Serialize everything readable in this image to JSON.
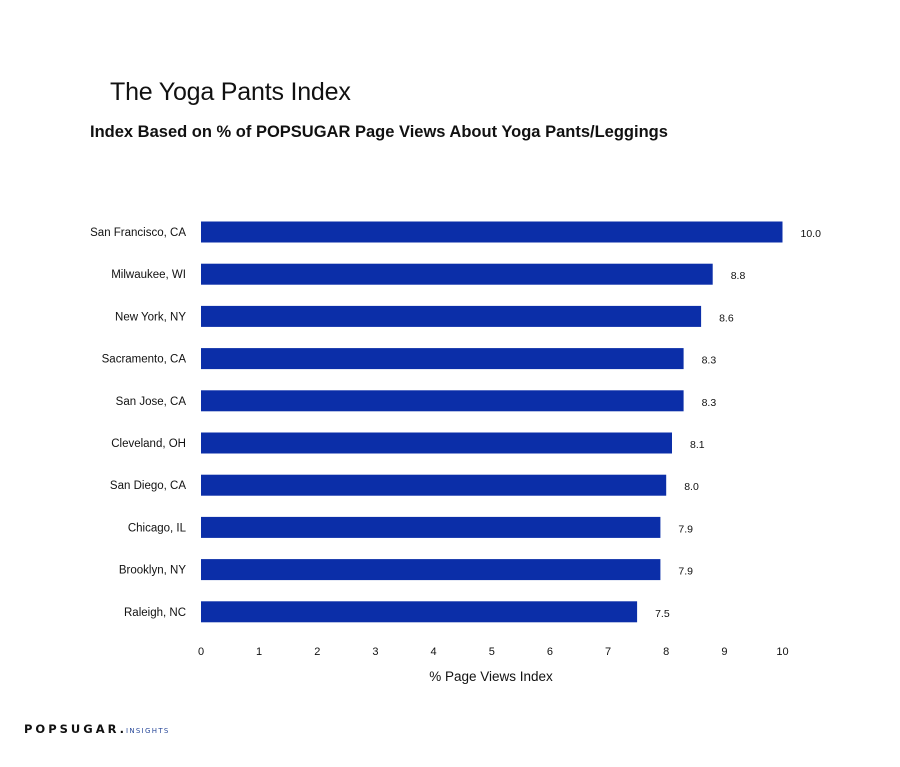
{
  "colors": {
    "bar": "#0b2ea8",
    "text": "#111111",
    "brand_accent": "#2a4a9a"
  },
  "brand": {
    "name": "POPSUGAR.",
    "suffix": "INSIGHTS"
  },
  "chart_data": {
    "type": "bar",
    "orientation": "horizontal",
    "title": "The Yoga Pants Index",
    "subtitle": "Index Based on % of POPSUGAR Page Views About Yoga Pants/Leggings",
    "xlabel": "% Page Views Index",
    "ylabel": "",
    "categories": [
      "San Francisco, CA",
      "Milwaukee, WI",
      "New York, NY",
      "Sacramento, CA",
      "San Jose, CA",
      "Cleveland, OH",
      "San Diego, CA",
      "Chicago, IL",
      "Brooklyn, NY",
      "Raleigh, NC"
    ],
    "values": [
      10.0,
      8.8,
      8.6,
      8.3,
      8.3,
      8.1,
      8.0,
      7.9,
      7.9,
      7.5
    ],
    "value_labels": [
      "10.0",
      "8.8",
      "8.6",
      "8.3",
      "8.3",
      "8.1",
      "8.0",
      "7.9",
      "7.9",
      "7.5"
    ],
    "xlim": [
      0,
      10
    ],
    "xticks": [
      "0",
      "1",
      "2",
      "3",
      "4",
      "5",
      "6",
      "7",
      "8",
      "9",
      "10"
    ],
    "grid": false,
    "legend": "none"
  }
}
